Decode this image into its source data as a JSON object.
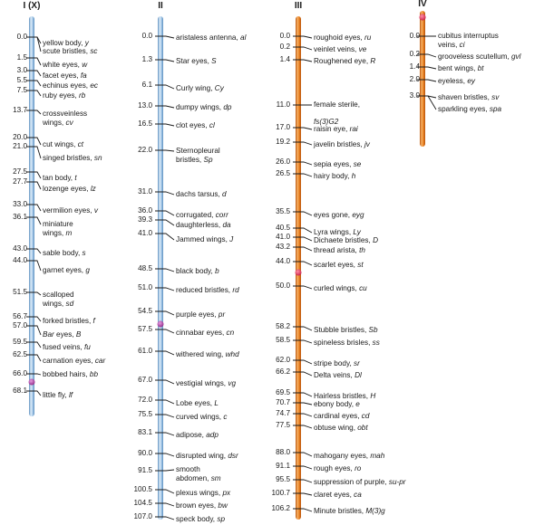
{
  "chromosomes": [
    {
      "id": "I",
      "title": "I (X)",
      "color": "blue",
      "genes": [
        {
          "pos": "0.0",
          "name": "yellow body, ",
          "sym": "y"
        },
        {
          "pos": "",
          "name": "scute bristles, ",
          "sym": "sc"
        },
        {
          "pos": "1.5",
          "name": "white eyes, ",
          "sym": "w"
        },
        {
          "pos": "3.0",
          "name": "facet eyes, ",
          "sym": "fa"
        },
        {
          "pos": "5.5",
          "name": "echinus eyes, ",
          "sym": "ec"
        },
        {
          "pos": "7.5",
          "name": "ruby eyes, ",
          "sym": "rb"
        },
        {
          "pos": "13.7",
          "name": "crossveinless",
          "name2": "wings, ",
          "sym": "cv"
        },
        {
          "pos": "20.0",
          "name": "cut wings, ",
          "sym": "ct"
        },
        {
          "pos": "21.0",
          "name": "singed bristles, ",
          "sym": "sn"
        },
        {
          "pos": "27.5",
          "name": "tan body, ",
          "sym": "t"
        },
        {
          "pos": "27.7",
          "name": "lozenge eyes, ",
          "sym": "lz"
        },
        {
          "pos": "33.0",
          "name": "vermilion eyes, ",
          "sym": "v"
        },
        {
          "pos": "36.1",
          "name": "miniature",
          "name2": "wings, ",
          "sym": "m"
        },
        {
          "pos": "43.0",
          "name": "sable body, ",
          "sym": "s"
        },
        {
          "pos": "44.0",
          "name": "garnet eyes, ",
          "sym": "g"
        },
        {
          "pos": "51.5",
          "name": "scalloped",
          "name2": "wings, ",
          "sym": "sd"
        },
        {
          "pos": "56.7",
          "name": "forked bristles, ",
          "sym": "f"
        },
        {
          "pos": "57.0",
          "name": "",
          "nameItalic": "Bar",
          "nameAfter": " eyes, ",
          "sym": "B"
        },
        {
          "pos": "59.5",
          "name": "fused veins, ",
          "sym": "fu"
        },
        {
          "pos": "62.5",
          "name": "carnation eyes, ",
          "sym": "car"
        },
        {
          "pos": "66.0",
          "name": "bobbed hairs, ",
          "sym": "bb"
        },
        {
          "pos": "68.1",
          "name": "little fly, ",
          "sym": "lf"
        }
      ]
    },
    {
      "id": "II",
      "title": "II",
      "color": "blue",
      "genes": [
        {
          "pos": "0.0",
          "name": "aristaless antenna, ",
          "sym": "al"
        },
        {
          "pos": "1.3",
          "name": "Star eyes, ",
          "sym": "S"
        },
        {
          "pos": "6.1",
          "name": "Curly wing, ",
          "sym": "Cy"
        },
        {
          "pos": "13.0",
          "name": "dumpy wings, ",
          "sym": "dp"
        },
        {
          "pos": "16.5",
          "name": "clot eyes, ",
          "sym": "cl"
        },
        {
          "pos": "22.0",
          "name": "Sternopleural",
          "name2": "bristles, ",
          "sym": "Sp"
        },
        {
          "pos": "31.0",
          "name": "dachs tarsus, ",
          "sym": "d"
        },
        {
          "pos": "36.0",
          "name": "corrugated, ",
          "sym": "corr"
        },
        {
          "pos": "39.3",
          "name": "daughterless, ",
          "sym": "da"
        },
        {
          "pos": "41.0",
          "name": "Jammed wings, ",
          "sym": "J"
        },
        {
          "pos": "48.5",
          "name": "black body, ",
          "sym": "b"
        },
        {
          "pos": "51.0",
          "name": "reduced bristles, ",
          "sym": "rd"
        },
        {
          "pos": "54.5",
          "name": "purple eyes, ",
          "sym": "pr"
        },
        {
          "pos": "57.5",
          "name": "cinnabar eyes, ",
          "sym": "cn"
        },
        {
          "pos": "61.0",
          "name": "withered wing, ",
          "sym": "whd"
        },
        {
          "pos": "67.0",
          "name": "vestigial wings, ",
          "sym": "vg"
        },
        {
          "pos": "72.0",
          "name": "Lobe eyes, ",
          "sym": "L"
        },
        {
          "pos": "75.5",
          "name": "curved wings, ",
          "sym": "c"
        },
        {
          "pos": "83.1",
          "name": "adipose, ",
          "sym": "adp"
        },
        {
          "pos": "90.0",
          "name": "disrupted wing, ",
          "sym": "dsr"
        },
        {
          "pos": "91.5",
          "name": "smooth",
          "name2": "abdomen, ",
          "sym": "sm"
        },
        {
          "pos": "100.5",
          "name": "plexus wings, ",
          "sym": "px"
        },
        {
          "pos": "104.5",
          "name": "brown eyes, ",
          "sym": "bw"
        },
        {
          "pos": "107.0",
          "name": "speck body, ",
          "sym": "sp"
        }
      ]
    },
    {
      "id": "III",
      "title": "III",
      "color": "orange",
      "genes": [
        {
          "pos": "0.0",
          "name": "roughoid eyes, ",
          "sym": "ru"
        },
        {
          "pos": "0.2",
          "name": "veinlet veins, ",
          "sym": "ve"
        },
        {
          "pos": "1.4",
          "name": "Roughened eye, ",
          "sym": "R"
        },
        {
          "pos": "11.0",
          "name": "female sterile,",
          "name2": "",
          "sym2": "fs(3)G2"
        },
        {
          "pos": "17.0",
          "name": "raisin eye, ",
          "sym": "rai"
        },
        {
          "pos": "19.2",
          "name": "javelin bristles, ",
          "sym": "jv"
        },
        {
          "pos": "26.0",
          "name": "sepia eyes, ",
          "sym": "se"
        },
        {
          "pos": "26.5",
          "name": "hairy body, ",
          "sym": "h"
        },
        {
          "pos": "35.5",
          "name": "eyes gone, ",
          "sym": "eyg"
        },
        {
          "pos": "40.5",
          "name": "Lyra wings, ",
          "sym": "Ly"
        },
        {
          "pos": "41.0",
          "name": "Dichaete bristles, ",
          "sym": "D"
        },
        {
          "pos": "43.2",
          "name": "thread arista, ",
          "sym": "th"
        },
        {
          "pos": "44.0",
          "name": "scarlet eyes, ",
          "sym": "st"
        },
        {
          "pos": "50.0",
          "name": "curled wings, ",
          "sym": "cu"
        },
        {
          "pos": "58.2",
          "name": "Stubble bristles, ",
          "sym": "Sb"
        },
        {
          "pos": "58.5",
          "name": "spineless brisles, ",
          "sym": "ss"
        },
        {
          "pos": "62.0",
          "name": "stripe body, ",
          "sym": "sr"
        },
        {
          "pos": "66.2",
          "name": "Delta veins, ",
          "sym": "Dl"
        },
        {
          "pos": "69.5",
          "name": "Hairless bristles, ",
          "sym": "H"
        },
        {
          "pos": "70.7",
          "name": "ebony body, ",
          "sym": "e"
        },
        {
          "pos": "74.7",
          "name": "cardinal eyes, ",
          "sym": "cd"
        },
        {
          "pos": "77.5",
          "name": "obtuse wing, ",
          "sym": "obt"
        },
        {
          "pos": "88.0",
          "name": "mahogany eyes, ",
          "sym": "mah"
        },
        {
          "pos": "91.1",
          "name": "rough eyes, ",
          "sym": "ro"
        },
        {
          "pos": "95.5",
          "name": "suppression of purple, ",
          "sym": "su-pr"
        },
        {
          "pos": "100.7",
          "name": "claret eyes, ",
          "sym": "ca"
        },
        {
          "pos": "106.2",
          "name": "Minute bristles, ",
          "sym": "M(3)g"
        }
      ]
    },
    {
      "id": "IV",
      "title": "IV",
      "color": "orange",
      "genes": [
        {
          "pos": "0.0",
          "name": "cubitus interruptus",
          "name2": "veins, ",
          "sym": "ci"
        },
        {
          "pos": "0.2",
          "name": "grooveless scutellum, ",
          "sym": "gvl"
        },
        {
          "pos": "1.4",
          "name": "bent wings, ",
          "sym": "bt"
        },
        {
          "pos": "2.0",
          "name": "eyeless, ",
          "sym": "ey"
        },
        {
          "pos": "3.0",
          "name": "shaven bristles, ",
          "sym": "sv"
        },
        {
          "pos": "",
          "name": "sparkling eyes, ",
          "sym": "spa"
        }
      ]
    }
  ],
  "colors": {
    "blue_light": "#dcebf7",
    "blue_mid": "#9cc3e4",
    "blue_dark": "#5b8fc0",
    "orange_light": "#f7b36a",
    "orange_mid": "#e8761a",
    "orange_dark": "#b9530a",
    "centromere": "#e0335a",
    "centromere_purple": "#b23fa6",
    "tick": "#1a1a1a"
  }
}
